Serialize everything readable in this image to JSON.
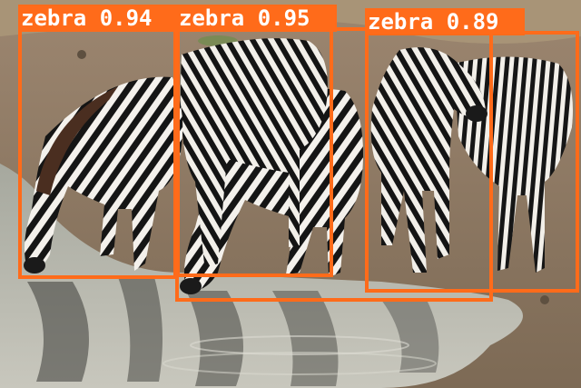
{
  "image": {
    "subject": "zebras drinking at a watering hole"
  },
  "detections": [
    {
      "label": "zebra 0.94",
      "class": "zebra",
      "confidence": 0.94
    },
    {
      "label": "zebra 0.95",
      "class": "zebra",
      "confidence": 0.95
    },
    {
      "label": "zebra 0.89",
      "class": "zebra",
      "confidence": 0.89
    },
    {
      "label": "",
      "class": "zebra",
      "confidence": null
    }
  ],
  "colors": {
    "box": "#ff6b1a",
    "label_text": "#ffffff"
  }
}
